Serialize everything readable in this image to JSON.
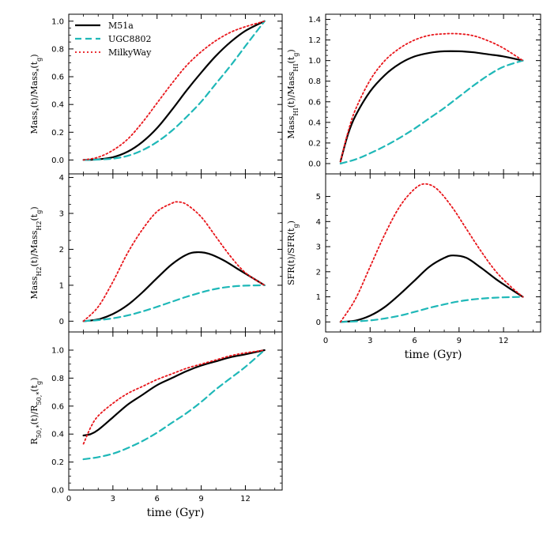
{
  "colors": {
    "M51a": "#000000",
    "UGC8802": "#1fb8b8",
    "MilkyWay": "#e8161b"
  },
  "chart_data": [
    {
      "id": "mass-star",
      "type": "line",
      "column": "left",
      "ylabel_html": "Mass<tspan baseline-shift='sub' font-size='8'>*</tspan>(t)/Mass<tspan baseline-shift='sub' font-size='8'>*</tspan>(t<tspan baseline-shift='sub' font-size='8'>g</tspan>)",
      "ylim": [
        -0.1,
        1.05
      ],
      "yticks": [
        0.0,
        0.2,
        0.4,
        0.6,
        0.8,
        1.0
      ],
      "ytick_labels": [
        "0.0",
        "0.2",
        "0.4",
        "0.6",
        "0.8",
        "1.0"
      ],
      "xlim": [
        0,
        14.5
      ],
      "show_xticklabels": false,
      "legend": true,
      "series": [
        {
          "name": "M51a",
          "x": [
            1,
            2,
            3,
            4,
            5,
            6,
            7,
            8,
            9,
            10,
            11,
            12,
            13.3
          ],
          "y": [
            0,
            0.005,
            0.02,
            0.06,
            0.13,
            0.23,
            0.36,
            0.5,
            0.63,
            0.75,
            0.85,
            0.93,
            1.0
          ]
        },
        {
          "name": "UGC8802",
          "x": [
            1,
            2,
            3,
            4,
            5,
            6,
            7,
            8,
            9,
            10,
            11,
            12,
            13.3
          ],
          "y": [
            0,
            0.003,
            0.01,
            0.03,
            0.07,
            0.13,
            0.21,
            0.31,
            0.42,
            0.55,
            0.68,
            0.82,
            1.0
          ]
        },
        {
          "name": "MilkyWay",
          "x": [
            1,
            2,
            3,
            4,
            5,
            6,
            7,
            8,
            9,
            10,
            11,
            12,
            13.3
          ],
          "y": [
            0,
            0.02,
            0.07,
            0.15,
            0.27,
            0.41,
            0.55,
            0.68,
            0.78,
            0.86,
            0.92,
            0.96,
            1.0
          ]
        }
      ]
    },
    {
      "id": "mass-hi",
      "type": "line",
      "column": "right",
      "ylabel_html": "Mass<tspan baseline-shift='sub' font-size='8'>HI</tspan>(t)/Mass<tspan baseline-shift='sub' font-size='8'>HI</tspan>(t<tspan baseline-shift='sub' font-size='8'>g</tspan>)",
      "ylim": [
        -0.1,
        1.45
      ],
      "yticks": [
        0.0,
        0.2,
        0.4,
        0.6,
        0.8,
        1.0,
        1.2,
        1.4
      ],
      "ytick_labels": [
        "0.0",
        "0.2",
        "0.4",
        "0.6",
        "0.8",
        "1.0",
        "1.2",
        "1.4"
      ],
      "xlim": [
        0,
        14.5
      ],
      "show_xticklabels": false,
      "legend": false,
      "series": [
        {
          "name": "M51a",
          "x": [
            1,
            1.5,
            2,
            3,
            4,
            5,
            6,
            7,
            8,
            9,
            10,
            11,
            12,
            13.3
          ],
          "y": [
            0.02,
            0.28,
            0.46,
            0.7,
            0.86,
            0.97,
            1.04,
            1.075,
            1.09,
            1.09,
            1.08,
            1.06,
            1.04,
            1.0
          ]
        },
        {
          "name": "UGC8802",
          "x": [
            1,
            2,
            3,
            4,
            5,
            6,
            7,
            8,
            9,
            10,
            11,
            12,
            13.3
          ],
          "y": [
            0,
            0.04,
            0.1,
            0.17,
            0.25,
            0.34,
            0.44,
            0.54,
            0.65,
            0.76,
            0.86,
            0.94,
            1.0
          ]
        },
        {
          "name": "MilkyWay",
          "x": [
            1,
            1.5,
            2,
            3,
            4,
            5,
            6,
            7,
            8,
            9,
            10,
            11,
            12,
            13.3
          ],
          "y": [
            0.02,
            0.3,
            0.52,
            0.81,
            1.0,
            1.12,
            1.2,
            1.245,
            1.26,
            1.26,
            1.24,
            1.19,
            1.12,
            1.0
          ]
        }
      ]
    },
    {
      "id": "mass-h2",
      "type": "line",
      "column": "left",
      "ylabel_html": "Mass<tspan baseline-shift='sub' font-size='8'>H2</tspan>(t)/Mass<tspan baseline-shift='sub' font-size='8'>H2</tspan>(t<tspan baseline-shift='sub' font-size='8'>g</tspan>)",
      "ylim": [
        -0.3,
        4.1
      ],
      "yticks": [
        0,
        1,
        2,
        3,
        4
      ],
      "ytick_labels": [
        "0",
        "1",
        "2",
        "3",
        "4"
      ],
      "xlim": [
        0,
        14.5
      ],
      "show_xticklabels": false,
      "legend": false,
      "series": [
        {
          "name": "M51a",
          "x": [
            1,
            2,
            3,
            4,
            5,
            6,
            7,
            8,
            8.7,
            9.5,
            10.5,
            11.5,
            12.5,
            13.3
          ],
          "y": [
            0,
            0.05,
            0.2,
            0.45,
            0.8,
            1.2,
            1.58,
            1.85,
            1.92,
            1.88,
            1.7,
            1.45,
            1.2,
            1.0
          ]
        },
        {
          "name": "UGC8802",
          "x": [
            1,
            2,
            3,
            4,
            5,
            6,
            7,
            8,
            9,
            10,
            11,
            12,
            13.3
          ],
          "y": [
            0,
            0.03,
            0.08,
            0.16,
            0.27,
            0.4,
            0.54,
            0.68,
            0.8,
            0.9,
            0.96,
            0.99,
            1.0
          ]
        },
        {
          "name": "MilkyWay",
          "x": [
            1,
            2,
            3,
            4,
            5,
            6,
            7,
            7.4,
            8,
            9,
            10,
            11,
            12,
            13.3
          ],
          "y": [
            0,
            0.4,
            1.1,
            1.9,
            2.55,
            3.05,
            3.28,
            3.32,
            3.25,
            2.9,
            2.35,
            1.8,
            1.35,
            1.0
          ]
        }
      ]
    },
    {
      "id": "sfr",
      "type": "line",
      "column": "right",
      "ylabel_html": "SFR(t)/SFR(t<tspan baseline-shift='sub' font-size='8'>g</tspan>)",
      "ylim": [
        -0.4,
        5.9
      ],
      "yticks": [
        0,
        1,
        2,
        3,
        4,
        5
      ],
      "ytick_labels": [
        "0",
        "1",
        "2",
        "3",
        "4",
        "5"
      ],
      "xlim": [
        0,
        14.5
      ],
      "show_xticklabels": true,
      "xticks": [
        0,
        3,
        6,
        9,
        12
      ],
      "xtick_labels": [
        "0",
        "3",
        "6",
        "9",
        "12"
      ],
      "xlabel": "time (Gyr)",
      "legend": false,
      "series": [
        {
          "name": "M51a",
          "x": [
            1,
            2,
            3,
            4,
            5,
            6,
            7,
            8,
            8.6,
            9.5,
            10.5,
            11.5,
            12.5,
            13.3
          ],
          "y": [
            0,
            0.05,
            0.25,
            0.6,
            1.1,
            1.65,
            2.2,
            2.55,
            2.65,
            2.55,
            2.15,
            1.7,
            1.3,
            1.0
          ]
        },
        {
          "name": "UGC8802",
          "x": [
            1,
            2,
            3,
            4,
            5,
            6,
            7,
            8,
            9,
            10,
            11,
            12,
            13.3
          ],
          "y": [
            0,
            0.02,
            0.06,
            0.14,
            0.25,
            0.4,
            0.56,
            0.7,
            0.82,
            0.9,
            0.95,
            0.98,
            1.0
          ]
        },
        {
          "name": "MilkyWay",
          "x": [
            1,
            2,
            3,
            4,
            5,
            6,
            6.7,
            7.5,
            8.5,
            9.5,
            10.5,
            11.5,
            12.5,
            13.3
          ],
          "y": [
            0,
            0.9,
            2.2,
            3.5,
            4.6,
            5.3,
            5.5,
            5.3,
            4.6,
            3.7,
            2.8,
            2.0,
            1.4,
            1.0
          ]
        }
      ]
    },
    {
      "id": "r50",
      "type": "line",
      "column": "left",
      "ylabel_html": "R<tspan baseline-shift='sub' font-size='8'>50,*</tspan>(t)/R<tspan baseline-shift='sub' font-size='8'>50,*</tspan>(t<tspan baseline-shift='sub' font-size='8'>g</tspan>)",
      "ylim": [
        0.0,
        1.13
      ],
      "yticks": [
        0.0,
        0.2,
        0.4,
        0.6,
        0.8,
        1.0
      ],
      "ytick_labels": [
        "0.0",
        "0.2",
        "0.4",
        "0.6",
        "0.8",
        "1.0"
      ],
      "xlim": [
        0,
        14.5
      ],
      "show_xticklabels": true,
      "xticks": [
        0,
        3,
        6,
        9,
        12
      ],
      "xtick_labels": [
        "0",
        "3",
        "6",
        "9",
        "12"
      ],
      "xlabel": "time (Gyr)",
      "legend": false,
      "series": [
        {
          "name": "M51a",
          "x": [
            1,
            1.5,
            2,
            3,
            4,
            5,
            6,
            7,
            8,
            9,
            10,
            11,
            12,
            13.3
          ],
          "y": [
            0.39,
            0.4,
            0.43,
            0.52,
            0.61,
            0.68,
            0.75,
            0.8,
            0.85,
            0.89,
            0.92,
            0.95,
            0.97,
            1.0
          ]
        },
        {
          "name": "UGC8802",
          "x": [
            1,
            2,
            3,
            4,
            5,
            6,
            7,
            8,
            9,
            10,
            11,
            12,
            13.3
          ],
          "y": [
            0.22,
            0.235,
            0.26,
            0.3,
            0.35,
            0.41,
            0.48,
            0.55,
            0.63,
            0.72,
            0.8,
            0.88,
            1.0
          ]
        },
        {
          "name": "MilkyWay",
          "x": [
            1,
            1.5,
            2,
            3,
            4,
            5,
            6,
            7,
            8,
            9,
            10,
            11,
            12,
            13.3
          ],
          "y": [
            0.33,
            0.45,
            0.53,
            0.62,
            0.69,
            0.74,
            0.79,
            0.83,
            0.87,
            0.9,
            0.93,
            0.96,
            0.98,
            1.0
          ]
        }
      ]
    }
  ]
}
